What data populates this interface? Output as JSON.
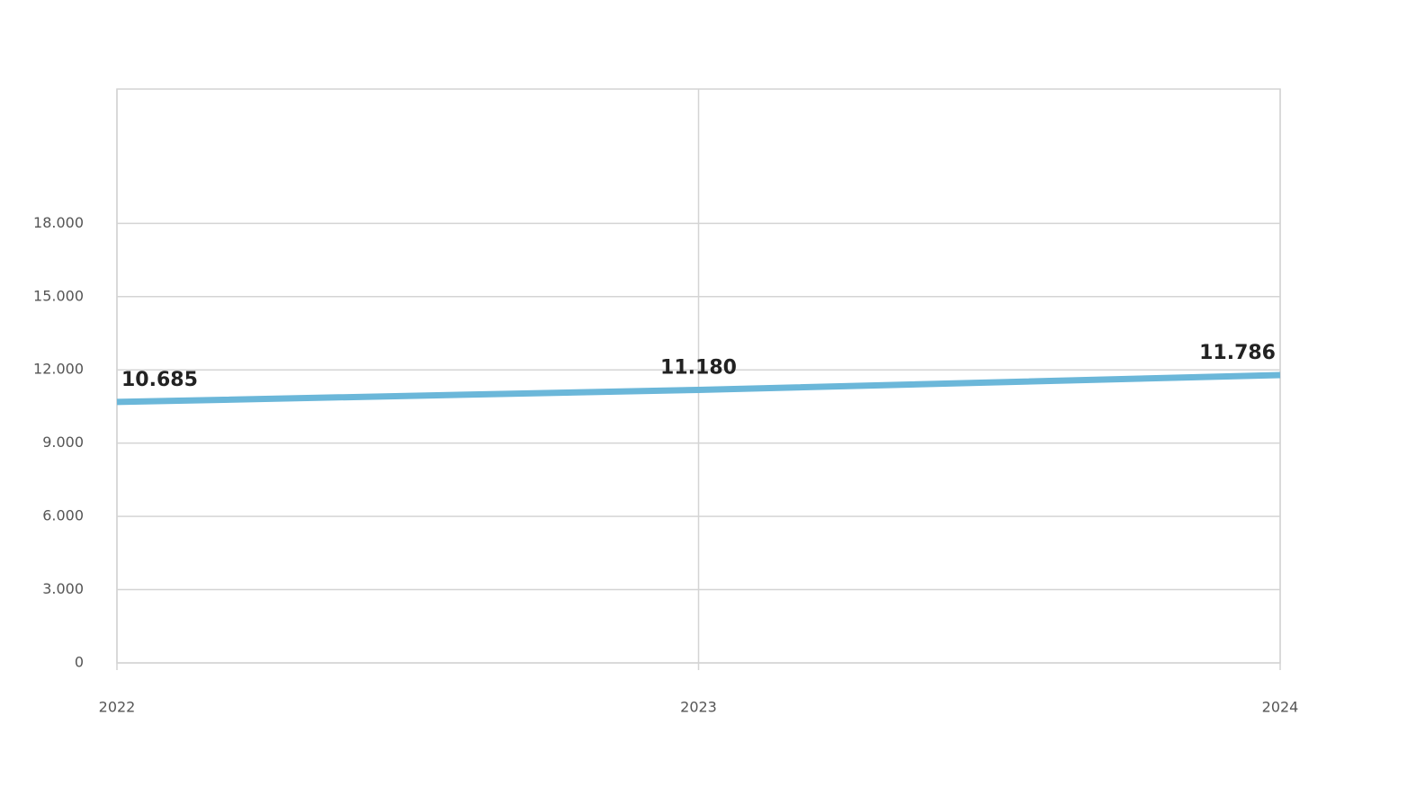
{
  "chart_data": {
    "type": "line",
    "categories": [
      "2022",
      "2023",
      "2024"
    ],
    "values": [
      10685,
      11180,
      11786
    ],
    "value_labels": [
      "10.685",
      "11.180",
      "11.786"
    ],
    "color": "#6bb7d9",
    "ylim": [
      0,
      23500
    ],
    "yticks": [
      0,
      {
        "value": 3000,
        "label": "3.000"
      },
      {
        "value": 6000,
        "label": "6.000"
      },
      {
        "value": 9000,
        "label": "9.000"
      },
      {
        "value": 12000,
        "label": "12.000"
      },
      {
        "value": 15000,
        "label": "15.000"
      },
      {
        "value": 18000,
        "label": "18.000"
      }
    ],
    "grid": true
  }
}
